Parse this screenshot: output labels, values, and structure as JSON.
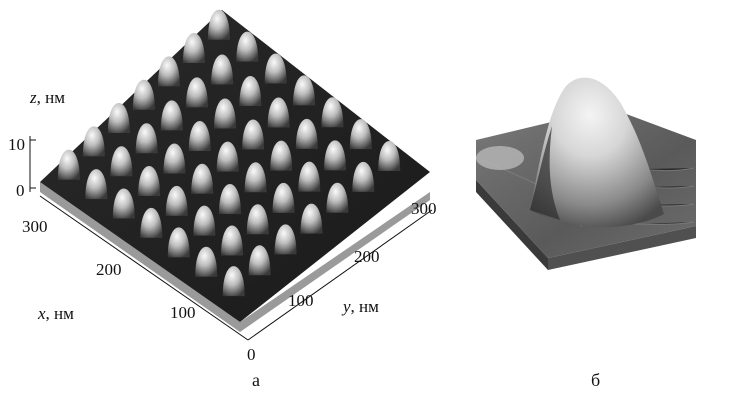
{
  "figure": {
    "panel_a": {
      "label": "а",
      "z_axis": {
        "var": "z",
        "unit": ", нм",
        "ticks": [
          "10",
          "0"
        ]
      },
      "x_axis": {
        "var": "x",
        "unit": ", нм",
        "ticks": [
          "300",
          "200",
          "100",
          "0"
        ]
      },
      "y_axis": {
        "var": "y",
        "unit": ", нм",
        "ticks": [
          "100",
          "200",
          "300"
        ]
      }
    },
    "panel_b": {
      "label": "б"
    }
  }
}
